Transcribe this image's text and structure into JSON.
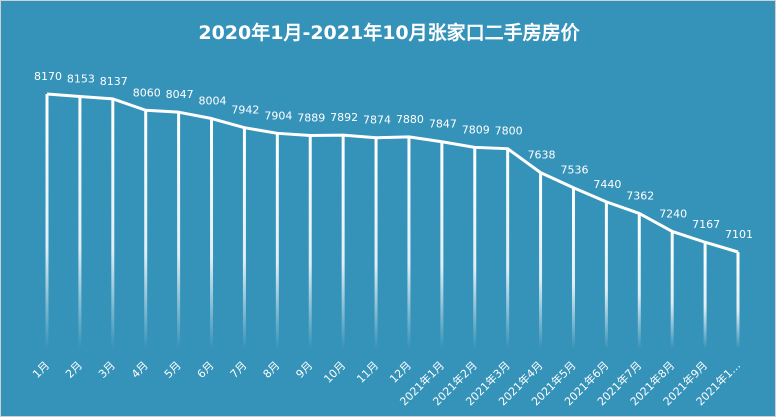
{
  "chart_data": {
    "type": "line",
    "title": "2020年1月-2021年10月张家口二手房房价",
    "categories": [
      "1月",
      "2月",
      "3月",
      "4月",
      "5月",
      "6月",
      "7月",
      "8月",
      "9月",
      "10月",
      "11月",
      "12月",
      "2021年1月",
      "2021年2月",
      "2021年3月",
      "2021年4月",
      "2021年5月",
      "2021年6月",
      "2021年7月",
      "2021年8月",
      "2021年9月",
      "2021年1…"
    ],
    "values": [
      8170,
      8153,
      8137,
      8060,
      8047,
      8004,
      7942,
      7904,
      7889,
      7892,
      7874,
      7880,
      7847,
      7809,
      7800,
      7638,
      7536,
      7440,
      7362,
      7240,
      7167,
      7101
    ],
    "xlabel": "",
    "ylabel": "",
    "grid": false,
    "legend": "none",
    "colors": {
      "background": "#3592b9",
      "line": "#ffffff"
    }
  }
}
